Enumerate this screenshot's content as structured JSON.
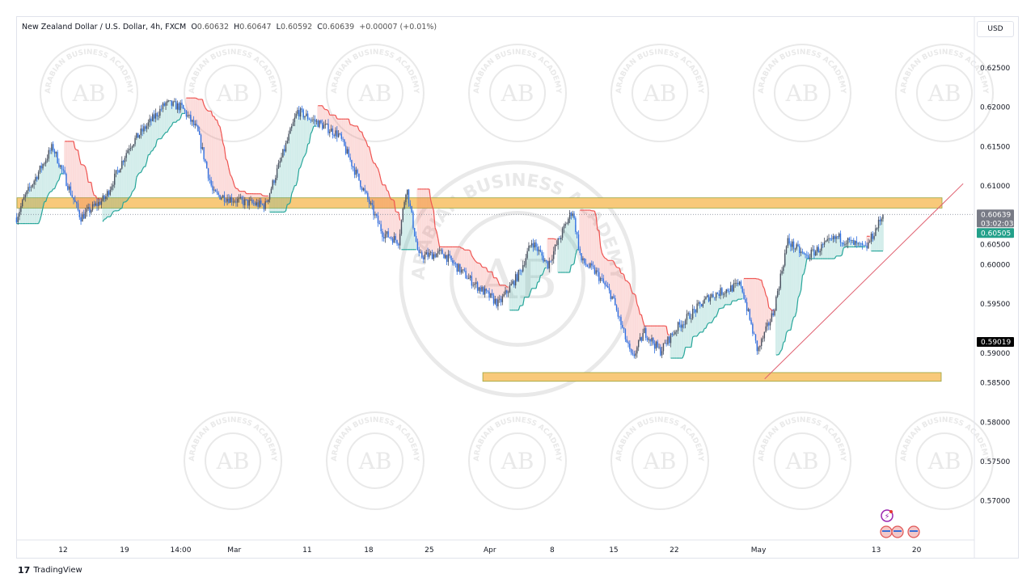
{
  "header": {
    "symbol": "New Zealand Dollar / U.S. Dollar, 4h, FXCM",
    "open_label": "O",
    "open": "0.60632",
    "high_label": "H",
    "high": "0.60647",
    "low_label": "L",
    "low": "0.60592",
    "close_label": "C",
    "close": "0.60639",
    "change": "+0.00007 (+0.01%)",
    "currency": "USD"
  },
  "watermark": {
    "text": "ARABIAN BUSINESS ACADEMY",
    "initials": "AB"
  },
  "footer": {
    "brand": "TradingView",
    "logo_icon": "tradingview-logo-icon"
  },
  "colors": {
    "up": "#2f6fe0",
    "down": "#4a5160",
    "zone": "#f8c97a",
    "zone_border": "#9aa43c",
    "trend": "#e06070",
    "st_up": "#26a69a",
    "st_down": "#ef5350"
  },
  "chart_data": {
    "type": "candlestick",
    "title": "New Zealand Dollar / U.S. Dollar, 4h, FXCM",
    "ylim": [
      0.5665,
      0.6315
    ],
    "xlim_days": [
      -5.5,
      104
    ],
    "y_ticks": [
      "0.62500",
      "0.62000",
      "0.61500",
      "0.61000",
      "0.60500",
      "0.60000",
      "0.59500",
      "0.59000",
      "0.58500",
      "0.58000",
      "0.57500",
      "0.57000"
    ],
    "x_ticks": [
      {
        "label": "12",
        "day": 0
      },
      {
        "label": "19",
        "day": 7
      },
      {
        "label": "14:00",
        "day": 13.4
      },
      {
        "label": "Mar",
        "day": 19.5
      },
      {
        "label": "11",
        "day": 27.8
      },
      {
        "label": "18",
        "day": 34.8
      },
      {
        "label": "25",
        "day": 41.7
      },
      {
        "label": "Apr",
        "day": 48.6
      },
      {
        "label": "8",
        "day": 55.7
      },
      {
        "label": "15",
        "day": 62.7
      },
      {
        "label": "22",
        "day": 69.6
      },
      {
        "label": "May",
        "day": 79.2
      },
      {
        "label": "13",
        "day": 92.6
      },
      {
        "label": "20",
        "day": 97.2
      }
    ],
    "price_path_anchors": [
      [
        -5.3,
        0.606
      ],
      [
        -4.4,
        0.6085
      ],
      [
        -1.2,
        0.615
      ],
      [
        2,
        0.606
      ],
      [
        4.8,
        0.6085
      ],
      [
        7.5,
        0.615
      ],
      [
        11.7,
        0.6205
      ],
      [
        13.5,
        0.62
      ],
      [
        15.3,
        0.617
      ],
      [
        17.1,
        0.609
      ],
      [
        20.3,
        0.608
      ],
      [
        23,
        0.6075
      ],
      [
        26.7,
        0.6195
      ],
      [
        31.4,
        0.6165
      ],
      [
        33.2,
        0.612
      ],
      [
        36.4,
        0.604
      ],
      [
        38.2,
        0.603
      ],
      [
        39.1,
        0.61
      ],
      [
        40.5,
        0.601
      ],
      [
        43.2,
        0.6015
      ],
      [
        46.9,
        0.5975
      ],
      [
        49.6,
        0.595
      ],
      [
        52,
        0.599
      ],
      [
        53.4,
        0.603
      ],
      [
        55.2,
        0.6
      ],
      [
        58,
        0.607
      ],
      [
        59,
        0.6005
      ],
      [
        60.7,
        0.599
      ],
      [
        62.5,
        0.596
      ],
      [
        64.8,
        0.588
      ],
      [
        66.2,
        0.5915
      ],
      [
        68,
        0.589
      ],
      [
        69.9,
        0.592
      ],
      [
        73.6,
        0.596
      ],
      [
        77.2,
        0.5975
      ],
      [
        79.1,
        0.589
      ],
      [
        80.9,
        0.594
      ],
      [
        82.5,
        0.603
      ],
      [
        84.6,
        0.601
      ],
      [
        88.2,
        0.6035
      ],
      [
        91.4,
        0.602
      ],
      [
        93.4,
        0.6064
      ]
    ],
    "resistance_zone": [
      0.6072,
      0.6085
    ],
    "support_zone": [
      0.5852,
      0.5863
    ],
    "support_zone_start_day": 47.8,
    "trendline": [
      [
        79.9,
        0.5855
      ],
      [
        102.5,
        0.6103
      ]
    ],
    "price_labels": {
      "last": "0.60639",
      "countdown": "03:02:03",
      "indicator": "0.60505",
      "marker": "0.59019"
    },
    "last_price": 0.60639,
    "indicator_price": 0.60505,
    "marker_price": 0.59019
  }
}
